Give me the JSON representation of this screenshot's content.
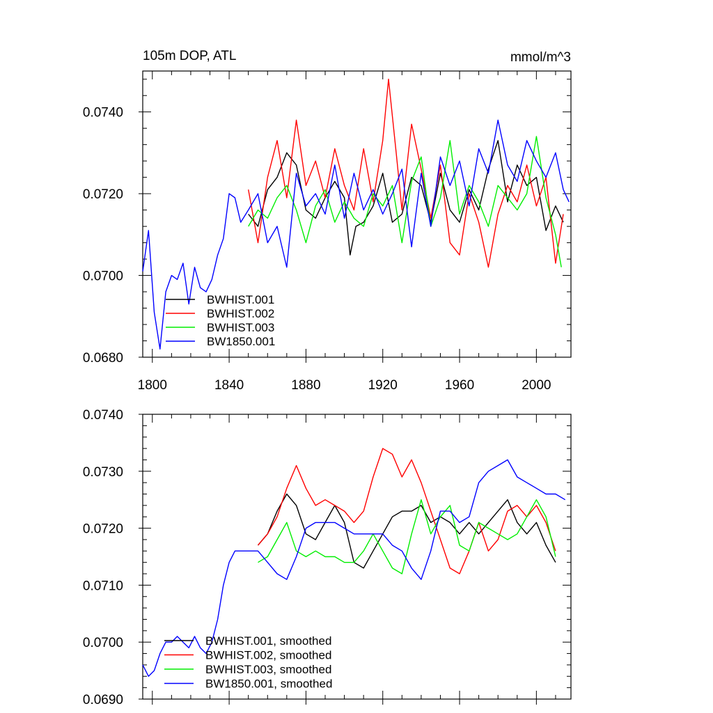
{
  "chart_data": [
    {
      "type": "line",
      "title": "105m DOP, ATL",
      "units": "mmol/m^3",
      "xlim": [
        1795,
        2018
      ],
      "ylim": [
        0.068,
        0.075
      ],
      "x_ticks": [
        1800,
        1840,
        1880,
        1920,
        1960,
        2000
      ],
      "x_tick_labels": [
        "1800",
        "1840",
        "1880",
        "1920",
        "1960",
        "2000"
      ],
      "y_ticks": [
        0.068,
        0.07,
        0.072,
        0.074
      ],
      "y_tick_labels": [
        "0.0680",
        "0.0700",
        "0.0720",
        "0.0740"
      ],
      "legend_position": "bottom-left",
      "series": [
        {
          "name": "BWHIST.001",
          "color": "#000000",
          "x": [
            1850,
            1855,
            1860,
            1865,
            1870,
            1875,
            1880,
            1885,
            1890,
            1895,
            1900,
            1903,
            1906,
            1910,
            1915,
            1920,
            1925,
            1930,
            1935,
            1940,
            1945,
            1950,
            1955,
            1960,
            1965,
            1970,
            1975,
            1980,
            1985,
            1990,
            1995,
            2000,
            2005,
            2010,
            2014
          ],
          "values": [
            0.0715,
            0.0712,
            0.0721,
            0.0724,
            0.073,
            0.0727,
            0.0716,
            0.0714,
            0.0719,
            0.0723,
            0.0719,
            0.0705,
            0.0712,
            0.0713,
            0.0717,
            0.0725,
            0.0713,
            0.0715,
            0.0724,
            0.0722,
            0.0713,
            0.0725,
            0.0716,
            0.0713,
            0.0721,
            0.0716,
            0.0726,
            0.0733,
            0.0718,
            0.0727,
            0.0722,
            0.0724,
            0.0711,
            0.0717,
            0.0713
          ]
        },
        {
          "name": "BWHIST.002",
          "color": "#ff0000",
          "x": [
            1850,
            1855,
            1860,
            1865,
            1870,
            1875,
            1880,
            1885,
            1890,
            1895,
            1900,
            1905,
            1910,
            1915,
            1920,
            1923,
            1927,
            1930,
            1935,
            1940,
            1945,
            1950,
            1955,
            1960,
            1965,
            1970,
            1975,
            1980,
            1985,
            1990,
            1995,
            2000,
            2005,
            2010,
            2014
          ],
          "values": [
            0.0721,
            0.0708,
            0.0724,
            0.0733,
            0.0719,
            0.0738,
            0.0722,
            0.0728,
            0.0719,
            0.0731,
            0.0722,
            0.0716,
            0.0731,
            0.0718,
            0.0733,
            0.0748,
            0.073,
            0.0716,
            0.0737,
            0.0726,
            0.0714,
            0.0727,
            0.0708,
            0.0705,
            0.072,
            0.0713,
            0.0702,
            0.0715,
            0.0722,
            0.0718,
            0.0727,
            0.0717,
            0.0724,
            0.0703,
            0.0715
          ]
        },
        {
          "name": "BWHIST.003",
          "color": "#00ee00",
          "x": [
            1850,
            1855,
            1860,
            1865,
            1870,
            1875,
            1880,
            1885,
            1890,
            1895,
            1900,
            1905,
            1910,
            1915,
            1920,
            1925,
            1930,
            1935,
            1940,
            1945,
            1950,
            1955,
            1960,
            1965,
            1970,
            1975,
            1980,
            1985,
            1990,
            1995,
            2000,
            2005,
            2010,
            2013
          ],
          "values": [
            0.0712,
            0.0716,
            0.0714,
            0.0719,
            0.0722,
            0.0716,
            0.0708,
            0.0717,
            0.0721,
            0.0713,
            0.0718,
            0.0714,
            0.0712,
            0.072,
            0.0717,
            0.0722,
            0.0708,
            0.0723,
            0.0729,
            0.0712,
            0.0719,
            0.0733,
            0.0715,
            0.0722,
            0.0718,
            0.0712,
            0.0722,
            0.0719,
            0.0716,
            0.072,
            0.0734,
            0.0719,
            0.071,
            0.0702
          ]
        },
        {
          "name": "BW1850.001",
          "color": "#0000ff",
          "x": [
            1795,
            1798,
            1801,
            1804,
            1807,
            1810,
            1813,
            1816,
            1819,
            1822,
            1825,
            1828,
            1831,
            1834,
            1837,
            1840,
            1843,
            1846,
            1850,
            1855,
            1860,
            1865,
            1870,
            1875,
            1880,
            1885,
            1890,
            1895,
            1900,
            1905,
            1910,
            1915,
            1920,
            1925,
            1930,
            1935,
            1940,
            1945,
            1950,
            1955,
            1960,
            1965,
            1970,
            1975,
            1980,
            1985,
            1990,
            1995,
            2000,
            2005,
            2010,
            2014,
            2017
          ],
          "values": [
            0.0701,
            0.0711,
            0.0691,
            0.0682,
            0.0696,
            0.07,
            0.0699,
            0.0703,
            0.0693,
            0.0702,
            0.0697,
            0.0696,
            0.0699,
            0.0705,
            0.0709,
            0.072,
            0.0719,
            0.0713,
            0.0716,
            0.072,
            0.0708,
            0.0712,
            0.0702,
            0.0725,
            0.0717,
            0.072,
            0.0715,
            0.0727,
            0.0714,
            0.0725,
            0.0716,
            0.0721,
            0.0715,
            0.072,
            0.0726,
            0.0707,
            0.0725,
            0.0712,
            0.0729,
            0.0722,
            0.0728,
            0.0717,
            0.0731,
            0.0725,
            0.0738,
            0.0727,
            0.0723,
            0.0733,
            0.0728,
            0.0724,
            0.073,
            0.0721,
            0.0718
          ]
        }
      ]
    },
    {
      "type": "line",
      "xlim": [
        1795,
        2018
      ],
      "ylim": [
        0.069,
        0.074
      ],
      "x_ticks": [
        1800,
        1840,
        1880,
        1920,
        1960,
        2000
      ],
      "x_tick_labels": [],
      "y_ticks": [
        0.069,
        0.07,
        0.071,
        0.072,
        0.073,
        0.074
      ],
      "y_tick_labels": [
        "0.0690",
        "0.0700",
        "0.0710",
        "0.0720",
        "0.0730",
        "0.0740"
      ],
      "legend_position": "bottom-left",
      "series": [
        {
          "name": "BWHIST.001, smoothed",
          "color": "#000000",
          "x": [
            1855,
            1860,
            1865,
            1870,
            1875,
            1880,
            1885,
            1890,
            1895,
            1900,
            1905,
            1910,
            1915,
            1920,
            1925,
            1930,
            1935,
            1940,
            1945,
            1950,
            1955,
            1960,
            1965,
            1970,
            1975,
            1980,
            1985,
            1990,
            1995,
            2000,
            2005,
            2010
          ],
          "values": [
            0.0717,
            0.0719,
            0.0723,
            0.0726,
            0.0724,
            0.0719,
            0.0718,
            0.0721,
            0.0724,
            0.0721,
            0.0714,
            0.0713,
            0.0716,
            0.0719,
            0.0722,
            0.0723,
            0.0723,
            0.0724,
            0.0721,
            0.0722,
            0.0721,
            0.0719,
            0.0721,
            0.0719,
            0.0721,
            0.0723,
            0.0725,
            0.0721,
            0.0719,
            0.0721,
            0.0717,
            0.0714
          ]
        },
        {
          "name": "BWHIST.002, smoothed",
          "color": "#ff0000",
          "x": [
            1855,
            1860,
            1865,
            1870,
            1875,
            1880,
            1885,
            1890,
            1895,
            1900,
            1905,
            1910,
            1915,
            1920,
            1925,
            1930,
            1935,
            1940,
            1945,
            1950,
            1955,
            1960,
            1965,
            1970,
            1975,
            1980,
            1985,
            1990,
            1995,
            2000,
            2005,
            2010
          ],
          "values": [
            0.0717,
            0.0719,
            0.0722,
            0.0727,
            0.0731,
            0.0727,
            0.0724,
            0.0725,
            0.0724,
            0.0723,
            0.0721,
            0.0723,
            0.0729,
            0.0734,
            0.0733,
            0.0729,
            0.0732,
            0.0728,
            0.0723,
            0.0718,
            0.0713,
            0.0712,
            0.0716,
            0.0721,
            0.0716,
            0.0718,
            0.0723,
            0.0724,
            0.0722,
            0.0724,
            0.0721,
            0.0716
          ]
        },
        {
          "name": "BWHIST.003, smoothed",
          "color": "#00ee00",
          "x": [
            1855,
            1860,
            1865,
            1870,
            1875,
            1880,
            1885,
            1890,
            1895,
            1900,
            1905,
            1910,
            1915,
            1920,
            1925,
            1930,
            1935,
            1940,
            1945,
            1950,
            1955,
            1960,
            1965,
            1970,
            1975,
            1980,
            1985,
            1990,
            1995,
            2000,
            2005,
            2010
          ],
          "values": [
            0.0714,
            0.0715,
            0.0718,
            0.0721,
            0.0716,
            0.0715,
            0.0716,
            0.0715,
            0.0715,
            0.0714,
            0.0714,
            0.0716,
            0.0719,
            0.0716,
            0.0713,
            0.0712,
            0.0719,
            0.0725,
            0.0719,
            0.0722,
            0.0724,
            0.0717,
            0.0716,
            0.0721,
            0.072,
            0.0719,
            0.0718,
            0.0719,
            0.0722,
            0.0725,
            0.0722,
            0.0715
          ]
        },
        {
          "name": "BW1850.001, smoothed",
          "color": "#0000ff",
          "x": [
            1795,
            1798,
            1801,
            1804,
            1807,
            1810,
            1813,
            1816,
            1819,
            1822,
            1825,
            1828,
            1831,
            1834,
            1837,
            1840,
            1843,
            1846,
            1850,
            1855,
            1860,
            1865,
            1870,
            1875,
            1880,
            1885,
            1890,
            1895,
            1900,
            1905,
            1910,
            1915,
            1920,
            1925,
            1930,
            1935,
            1940,
            1945,
            1950,
            1955,
            1960,
            1965,
            1970,
            1975,
            1980,
            1985,
            1990,
            1995,
            2000,
            2005,
            2010,
            2015
          ],
          "values": [
            0.0696,
            0.0694,
            0.0695,
            0.0698,
            0.07,
            0.07,
            0.0701,
            0.07,
            0.0699,
            0.0701,
            0.0699,
            0.0698,
            0.07,
            0.0704,
            0.071,
            0.0714,
            0.0716,
            0.0716,
            0.0716,
            0.0716,
            0.0714,
            0.0712,
            0.0711,
            0.0715,
            0.072,
            0.0721,
            0.0721,
            0.0721,
            0.072,
            0.0719,
            0.0719,
            0.0719,
            0.0719,
            0.0717,
            0.0716,
            0.0713,
            0.0711,
            0.0716,
            0.0723,
            0.0723,
            0.0721,
            0.0722,
            0.0728,
            0.073,
            0.0731,
            0.0732,
            0.0729,
            0.0728,
            0.0727,
            0.0726,
            0.0726,
            0.0725
          ]
        }
      ]
    }
  ]
}
